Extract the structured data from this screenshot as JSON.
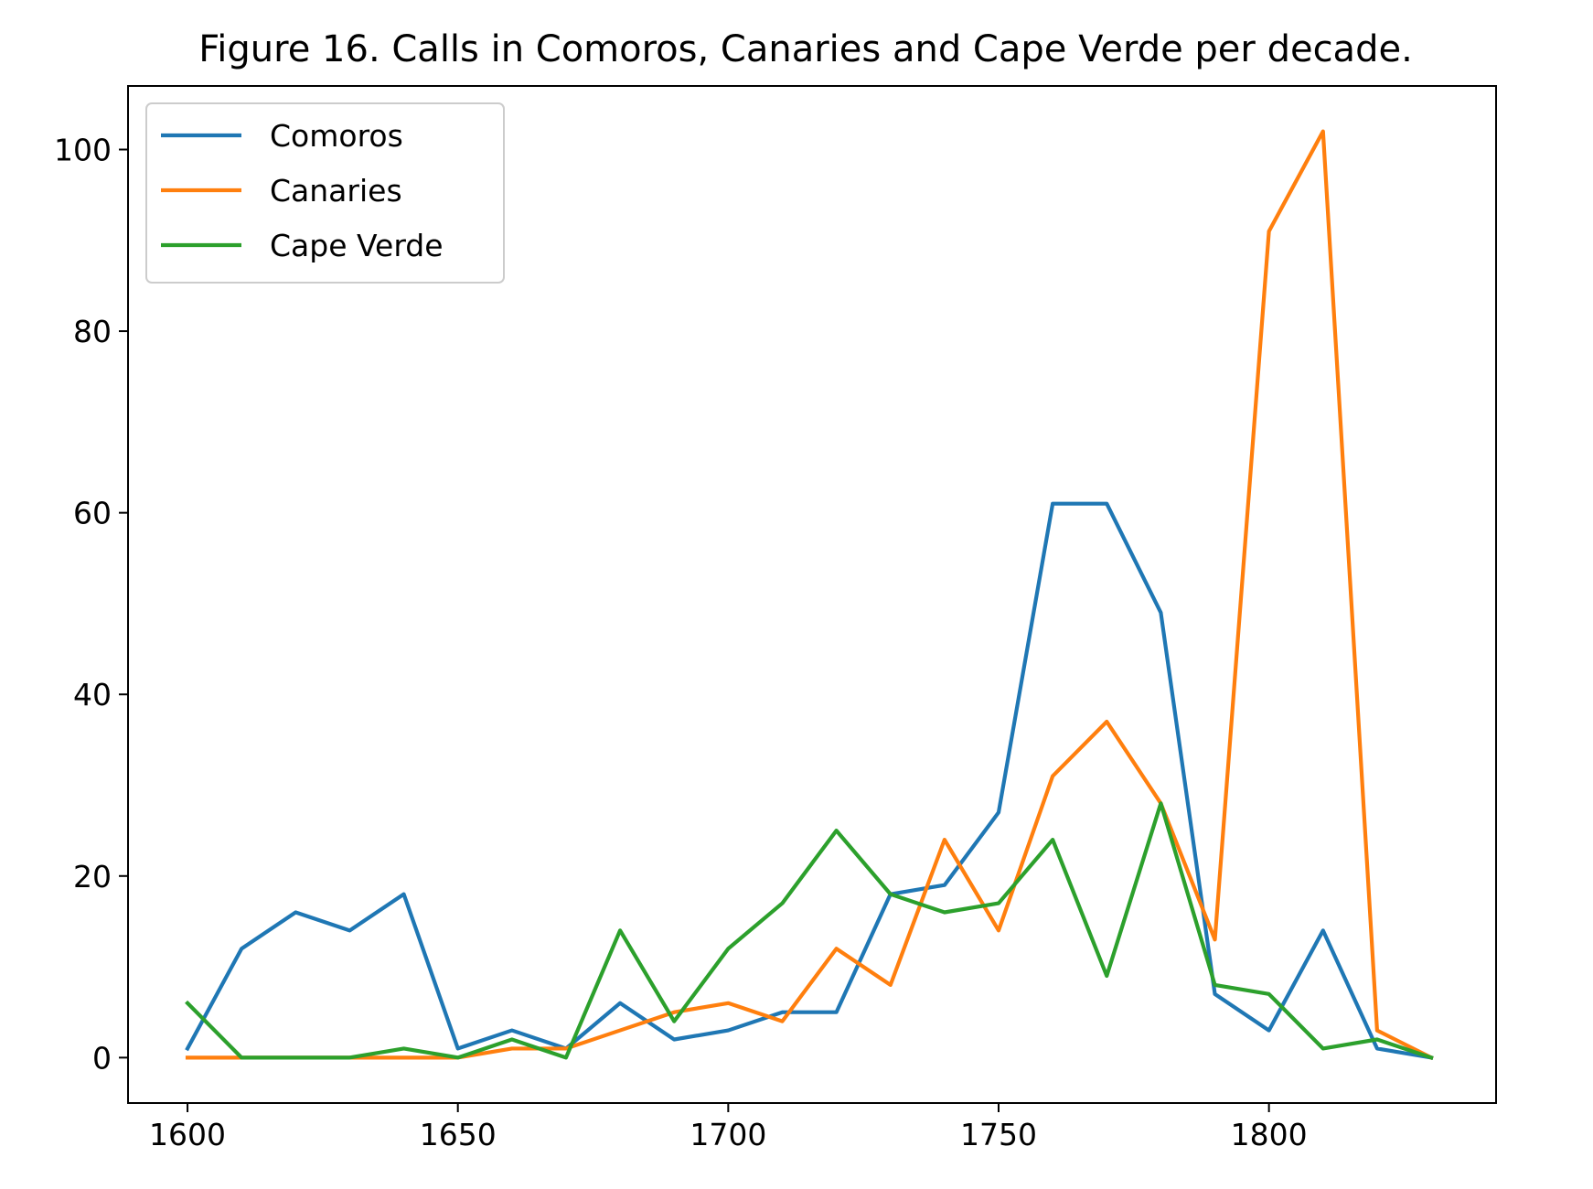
{
  "chart_data": {
    "type": "line",
    "title": "Figure 16. Calls in Comoros, Canaries and Cape Verde per decade.",
    "xlabel": "",
    "ylabel": "",
    "x": [
      1600,
      1610,
      1620,
      1630,
      1640,
      1650,
      1660,
      1670,
      1680,
      1690,
      1700,
      1710,
      1720,
      1730,
      1740,
      1750,
      1760,
      1770,
      1780,
      1790,
      1800,
      1810,
      1820,
      1830
    ],
    "xlim": [
      1589,
      1842
    ],
    "ylim": [
      -5,
      107
    ],
    "xticks": [
      1600,
      1650,
      1700,
      1750,
      1800
    ],
    "yticks": [
      0,
      20,
      40,
      60,
      80,
      100
    ],
    "grid": false,
    "legend_position": "upper-left",
    "series": [
      {
        "name": "Comoros",
        "color": "#1f77b4",
        "values": [
          1,
          12,
          16,
          14,
          18,
          1,
          3,
          1,
          6,
          2,
          3,
          5,
          5,
          18,
          19,
          27,
          61,
          61,
          49,
          7,
          3,
          14,
          1,
          0
        ]
      },
      {
        "name": "Canaries",
        "color": "#ff7f0e",
        "values": [
          0,
          0,
          0,
          0,
          0,
          0,
          1,
          1,
          3,
          5,
          6,
          4,
          12,
          8,
          24,
          14,
          31,
          37,
          28,
          13,
          91,
          102,
          3,
          0
        ]
      },
      {
        "name": "Cape Verde",
        "color": "#2ca02c",
        "values": [
          6,
          0,
          0,
          0,
          1,
          0,
          2,
          0,
          14,
          4,
          12,
          17,
          25,
          18,
          16,
          17,
          24,
          9,
          28,
          8,
          7,
          1,
          2,
          0
        ]
      }
    ]
  }
}
